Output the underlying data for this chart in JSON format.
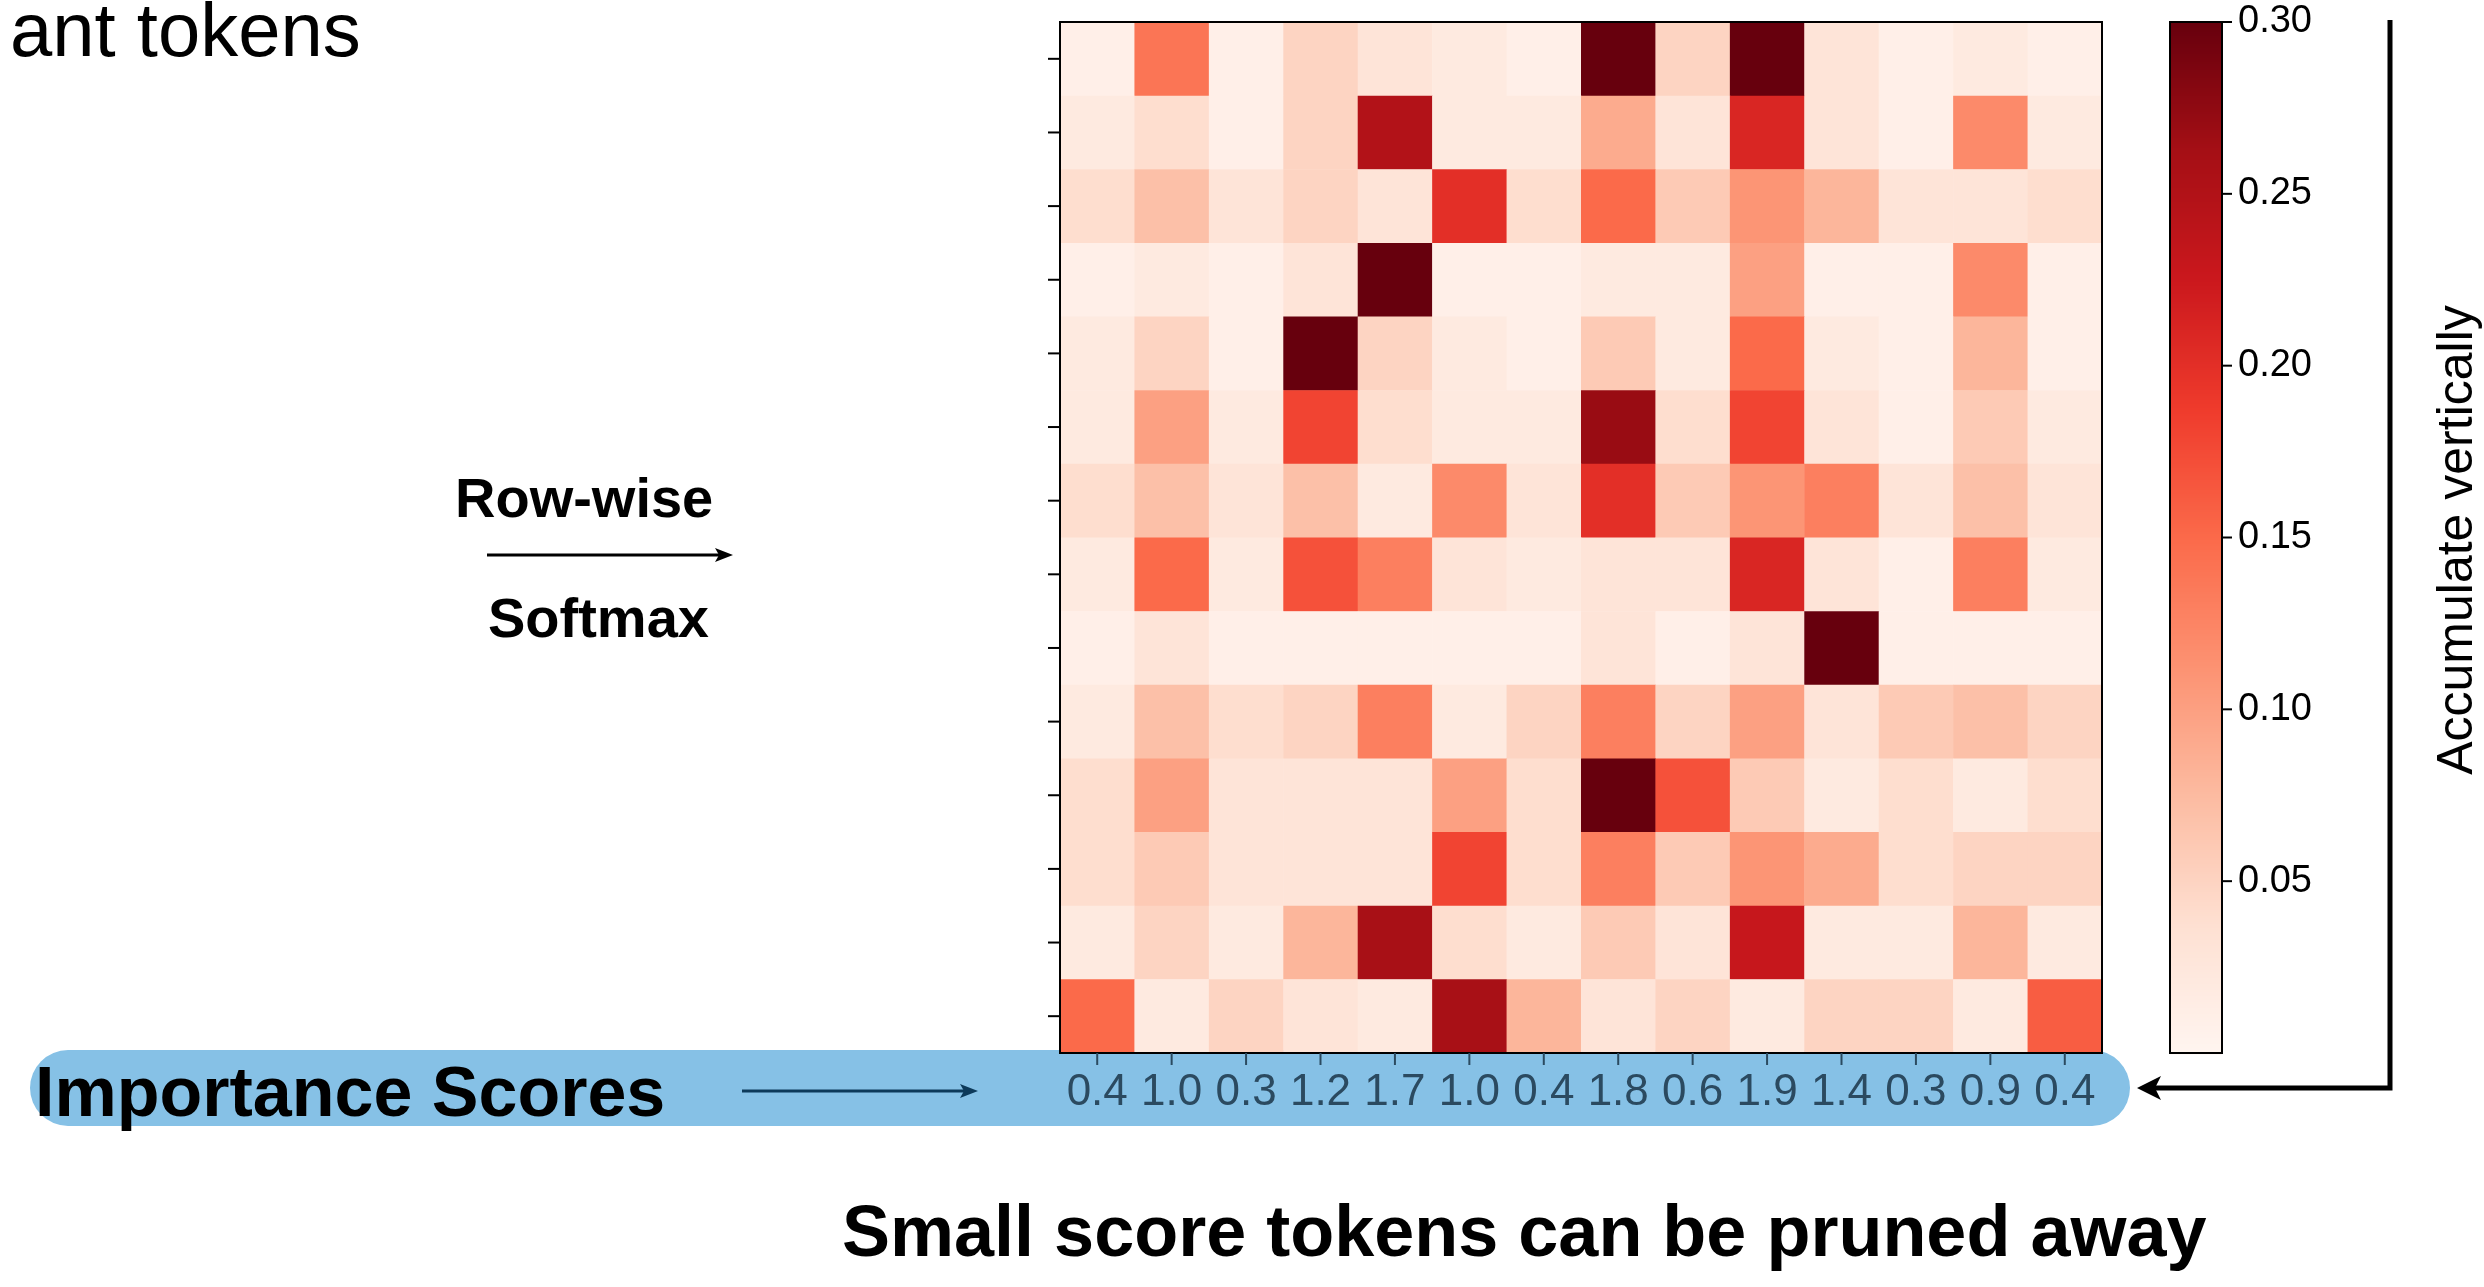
{
  "chart_data": {
    "type": "heatmap",
    "title": "ant tokens",
    "categories": [
      "0.4",
      "1.0",
      "0.3",
      "1.2",
      "1.7",
      "1.0",
      "0.4",
      "1.8",
      "0.6",
      "1.9",
      "1.4",
      "0.3",
      "0.9",
      "0.4"
    ],
    "y_categories": [
      null,
      null,
      null,
      null,
      null,
      null,
      null,
      null,
      null,
      null,
      null,
      null,
      null,
      null
    ],
    "cells": [
      [
        0.01,
        0.14,
        0.01,
        0.05,
        0.03,
        0.02,
        0.01,
        0.3,
        0.05,
        0.3,
        0.03,
        0.01,
        0.02,
        0.01
      ],
      [
        0.02,
        0.04,
        0.01,
        0.05,
        0.25,
        0.02,
        0.02,
        0.09,
        0.03,
        0.21,
        0.03,
        0.01,
        0.12,
        0.02
      ],
      [
        0.04,
        0.07,
        0.03,
        0.05,
        0.03,
        0.2,
        0.04,
        0.15,
        0.06,
        0.11,
        0.08,
        0.03,
        0.03,
        0.04
      ],
      [
        0.01,
        0.02,
        0.01,
        0.03,
        0.3,
        0.01,
        0.01,
        0.02,
        0.02,
        0.1,
        0.01,
        0.01,
        0.12,
        0.01
      ],
      [
        0.02,
        0.05,
        0.01,
        0.3,
        0.05,
        0.02,
        0.01,
        0.06,
        0.02,
        0.15,
        0.02,
        0.01,
        0.08,
        0.01
      ],
      [
        0.02,
        0.1,
        0.02,
        0.18,
        0.04,
        0.02,
        0.02,
        0.27,
        0.04,
        0.18,
        0.03,
        0.01,
        0.06,
        0.02
      ],
      [
        0.04,
        0.07,
        0.03,
        0.07,
        0.02,
        0.12,
        0.03,
        0.2,
        0.06,
        0.11,
        0.13,
        0.03,
        0.07,
        0.03
      ],
      [
        0.02,
        0.15,
        0.02,
        0.17,
        0.13,
        0.03,
        0.02,
        0.03,
        0.03,
        0.21,
        0.03,
        0.01,
        0.13,
        0.02
      ],
      [
        0.01,
        0.03,
        0.01,
        0.01,
        0.01,
        0.01,
        0.01,
        0.03,
        0.01,
        0.03,
        0.3,
        0.01,
        0.01,
        0.01
      ],
      [
        0.02,
        0.07,
        0.04,
        0.05,
        0.13,
        0.02,
        0.05,
        0.13,
        0.05,
        0.1,
        0.03,
        0.06,
        0.07,
        0.05
      ],
      [
        0.04,
        0.1,
        0.03,
        0.03,
        0.03,
        0.1,
        0.04,
        0.3,
        0.17,
        0.06,
        0.02,
        0.04,
        0.02,
        0.04
      ],
      [
        0.04,
        0.06,
        0.03,
        0.03,
        0.03,
        0.18,
        0.04,
        0.13,
        0.06,
        0.11,
        0.09,
        0.04,
        0.05,
        0.05
      ],
      [
        0.02,
        0.05,
        0.02,
        0.08,
        0.26,
        0.04,
        0.02,
        0.06,
        0.03,
        0.23,
        0.02,
        0.02,
        0.08,
        0.02
      ],
      [
        0.15,
        0.02,
        0.05,
        0.03,
        0.02,
        0.26,
        0.08,
        0.03,
        0.05,
        0.02,
        0.05,
        0.05,
        0.02,
        0.16
      ]
    ],
    "clim": [
      0,
      0.3
    ],
    "cticks": [
      0.05,
      {
        "value": 0.1,
        "label": "0.10"
      },
      0.15,
      {
        "value": 0.2,
        "label": "0.20"
      },
      0.25,
      {
        "value": 0.3,
        "label": "0.30"
      }
    ],
    "annotations": [
      "Row-wise",
      "Softmax",
      "Importance Scores",
      "Accumulate vertically",
      "Small score tokens can be pruned away"
    ]
  }
}
